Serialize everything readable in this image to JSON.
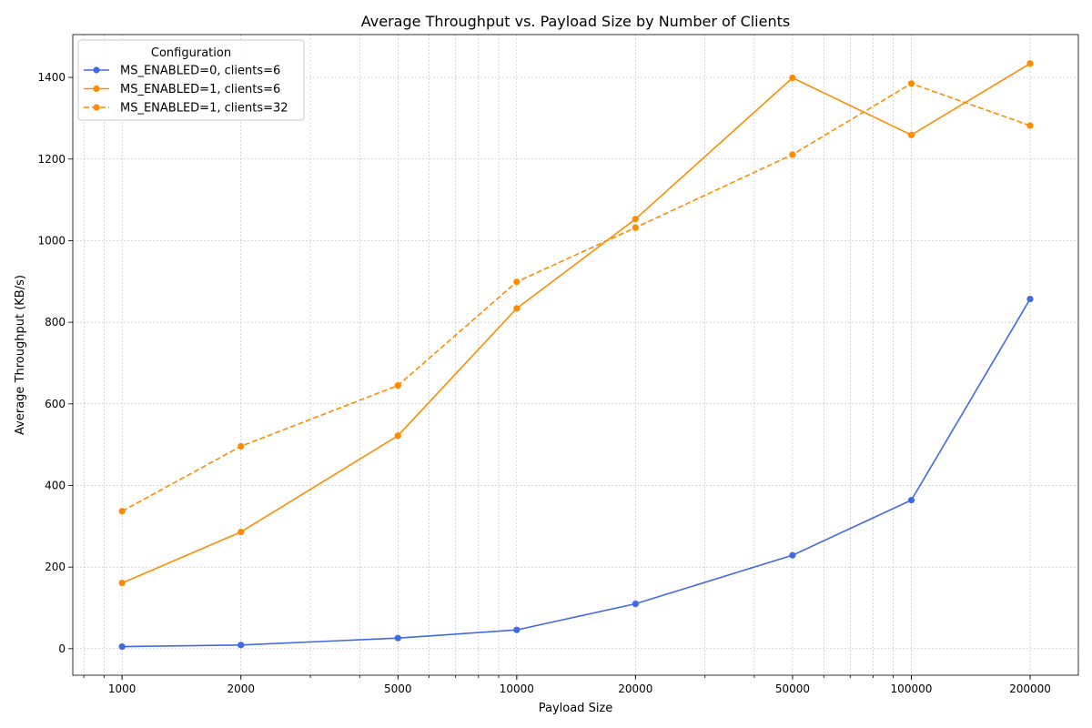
{
  "chart_data": {
    "type": "line",
    "title": "Average Throughput vs. Payload Size by Number of Clients",
    "xlabel": "Payload Size",
    "ylabel": "Average Throughput (KB/s)",
    "x_scale": "log",
    "xlim": [
      750,
      265000
    ],
    "ylim": [
      -65,
      1505
    ],
    "x": [
      1000,
      2000,
      5000,
      10000,
      20000,
      50000,
      100000,
      200000
    ],
    "x_tick_labels": [
      "1000",
      "2000",
      "5000",
      "10000",
      "20000",
      "50000",
      "100000",
      "200000"
    ],
    "y_ticks": [
      0,
      200,
      400,
      600,
      800,
      1000,
      1200,
      1400
    ],
    "grid": true,
    "legend": {
      "title": "Configuration",
      "position": "top-left"
    },
    "series": [
      {
        "name": "MS_ENABLED=0, clients=6",
        "color": "#4169E1",
        "dash": "solid",
        "values": [
          5,
          9,
          26,
          46,
          110,
          229,
          364,
          857
        ]
      },
      {
        "name": "MS_ENABLED=1, clients=6",
        "color": "#FF8C00",
        "dash": "solid",
        "values": [
          161,
          286,
          522,
          834,
          1053,
          1399,
          1259,
          1434
        ]
      },
      {
        "name": "MS_ENABLED=1, clients=32",
        "color": "#FF8C00",
        "dash": "dashed",
        "values": [
          337,
          496,
          645,
          899,
          1032,
          1211,
          1385,
          1282
        ]
      }
    ]
  }
}
